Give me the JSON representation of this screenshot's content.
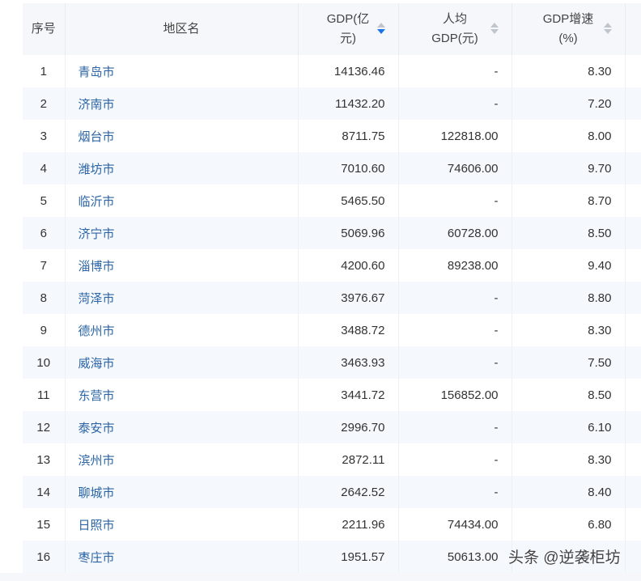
{
  "headers": [
    "序号",
    "地区名",
    "GDP(亿元)",
    "人均GDP(元)",
    "GDP增速(%)"
  ],
  "header_lines": {
    "gdp": [
      "GDP(亿",
      "元)"
    ],
    "per": [
      "人均",
      "GDP(元)"
    ],
    "growth": [
      "GDP增速",
      "(%)"
    ]
  },
  "sort_active": "GDP(亿元) descending",
  "rows": [
    [
      "1",
      "青岛市",
      "14136.46",
      "-",
      "8.30"
    ],
    [
      "2",
      "济南市",
      "11432.20",
      "-",
      "7.20"
    ],
    [
      "3",
      "烟台市",
      "8711.75",
      "122818.00",
      "8.00"
    ],
    [
      "4",
      "潍坊市",
      "7010.60",
      "74606.00",
      "9.70"
    ],
    [
      "5",
      "临沂市",
      "5465.50",
      "-",
      "8.70"
    ],
    [
      "6",
      "济宁市",
      "5069.96",
      "60728.00",
      "8.50"
    ],
    [
      "7",
      "淄博市",
      "4200.60",
      "89238.00",
      "9.40"
    ],
    [
      "8",
      "菏泽市",
      "3976.67",
      "-",
      "8.80"
    ],
    [
      "9",
      "德州市",
      "3488.72",
      "-",
      "8.30"
    ],
    [
      "10",
      "威海市",
      "3463.93",
      "-",
      "7.50"
    ],
    [
      "11",
      "东营市",
      "3441.72",
      "156852.00",
      "8.50"
    ],
    [
      "12",
      "泰安市",
      "2996.70",
      "-",
      "6.10"
    ],
    [
      "13",
      "滨州市",
      "2872.11",
      "-",
      "8.30"
    ],
    [
      "14",
      "聊城市",
      "2642.52",
      "-",
      "8.40"
    ],
    [
      "15",
      "日照市",
      "2211.96",
      "74434.00",
      "6.80"
    ],
    [
      "16",
      "枣庄市",
      "1951.57",
      "50613.00",
      "-"
    ]
  ],
  "watermark": "头条 @逆袭柜坊",
  "colors": {
    "link": "#2b65a6",
    "sort_active": "#1a73e8",
    "header_bg": "#f5f7fa",
    "stripe": "#f5f8fc"
  }
}
